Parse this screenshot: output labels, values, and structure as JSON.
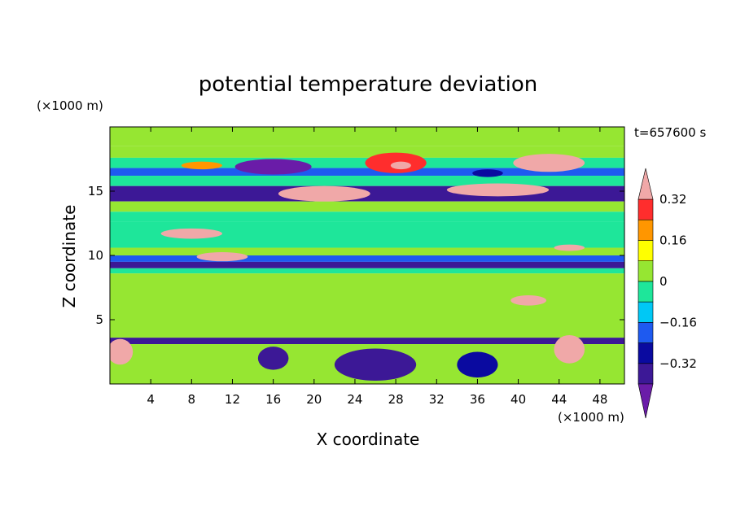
{
  "chart_data": {
    "type": "heatmap",
    "title": "potential temperature deviation",
    "time_label": "t=657600 s",
    "xlabel": "X coordinate",
    "ylabel": "Z coordinate",
    "x_unit": "(×1000 m)",
    "y_unit": "(×1000 m)",
    "xlim": [
      0,
      50.4
    ],
    "ylim": [
      0,
      20
    ],
    "x_ticks": [
      4,
      8,
      12,
      16,
      20,
      24,
      28,
      32,
      36,
      40,
      44,
      48
    ],
    "y_ticks": [
      5,
      10,
      15
    ],
    "colorbar": {
      "labels": [
        "0.32",
        "0.16",
        "0",
        "−0.16",
        "−0.32"
      ],
      "label_values": [
        0.32,
        0.16,
        0,
        -0.16,
        -0.32
      ],
      "level_edges": [
        -0.4,
        -0.32,
        -0.24,
        -0.16,
        -0.08,
        0,
        0.08,
        0.16,
        0.24,
        0.32,
        0.4
      ],
      "colors": [
        "#3c1896",
        "#0a0aa0",
        "#1e5af0",
        "#00c8f5",
        "#1ee69a",
        "#96e632",
        "#ffff00",
        "#ff9600",
        "#ff2d2d"
      ],
      "under_color": "#6a1ca8",
      "over_color": "#f0a8a8"
    },
    "field_bands": [
      {
        "z": [
          18.5,
          20.0
        ],
        "value": 0.05
      },
      {
        "z": [
          17.6,
          18.5
        ],
        "value": 0.03
      },
      {
        "z": [
          16.8,
          17.6
        ],
        "value": -0.05
      },
      {
        "z": [
          16.2,
          16.8
        ],
        "value": -0.2
      },
      {
        "z": [
          15.4,
          16.2
        ],
        "value": -0.05
      },
      {
        "z": [
          14.2,
          15.4
        ],
        "value": -0.38
      },
      {
        "z": [
          13.4,
          14.2
        ],
        "value": 0.05
      },
      {
        "z": [
          12.6,
          13.4
        ],
        "value": -0.02
      },
      {
        "z": [
          10.6,
          12.6
        ],
        "value": -0.05
      },
      {
        "z": [
          10.0,
          10.6
        ],
        "value": 0.03
      },
      {
        "z": [
          9.5,
          10.0
        ],
        "value": -0.2
      },
      {
        "z": [
          9.0,
          9.5
        ],
        "value": -0.35
      },
      {
        "z": [
          8.6,
          9.0
        ],
        "value": -0.08
      },
      {
        "z": [
          3.6,
          8.6
        ],
        "value": 0.03
      },
      {
        "z": [
          3.1,
          3.6
        ],
        "value": -0.34
      },
      {
        "z": [
          0.0,
          3.1
        ],
        "value": 0.0
      }
    ],
    "features": [
      {
        "x": 16,
        "z": 16.9,
        "width": 7.5,
        "height": 1.2,
        "value": -0.45
      },
      {
        "x": 28,
        "z": 17.2,
        "width": 6.0,
        "height": 1.6,
        "value": 0.3
      },
      {
        "x": 28.5,
        "z": 17.0,
        "width": 2.0,
        "height": 0.6,
        "value": 0.36
      },
      {
        "x": 9,
        "z": 17.0,
        "width": 4.0,
        "height": 0.6,
        "value": 0.2
      },
      {
        "x": 43,
        "z": 17.2,
        "width": 7.0,
        "height": 1.4,
        "value": 0.42
      },
      {
        "x": 37,
        "z": 16.4,
        "width": 3.0,
        "height": 0.6,
        "value": -0.25
      },
      {
        "x": 21,
        "z": 14.8,
        "width": 9.0,
        "height": 1.2,
        "value": 0.42
      },
      {
        "x": 38,
        "z": 15.1,
        "width": 10.0,
        "height": 1.0,
        "value": 0.42
      },
      {
        "x": 8,
        "z": 11.7,
        "width": 6.0,
        "height": 0.8,
        "value": 0.42
      },
      {
        "x": 11,
        "z": 9.9,
        "width": 5.0,
        "height": 0.7,
        "value": 0.42
      },
      {
        "x": 45,
        "z": 10.6,
        "width": 3.0,
        "height": 0.5,
        "value": 0.42
      },
      {
        "x": 41,
        "z": 6.5,
        "width": 3.5,
        "height": 0.8,
        "value": 0.42
      },
      {
        "x": 45,
        "z": 2.7,
        "width": 3.0,
        "height": 2.2,
        "value": 0.42
      },
      {
        "x": 1,
        "z": 2.5,
        "width": 2.5,
        "height": 2.0,
        "value": 0.42
      },
      {
        "x": 26,
        "z": 1.5,
        "width": 8.0,
        "height": 2.5,
        "value": -0.4
      },
      {
        "x": 16,
        "z": 2.0,
        "width": 3.0,
        "height": 1.8,
        "value": -0.4
      },
      {
        "x": 36,
        "z": 1.5,
        "width": 4.0,
        "height": 2.0,
        "value": -0.3
      }
    ]
  }
}
